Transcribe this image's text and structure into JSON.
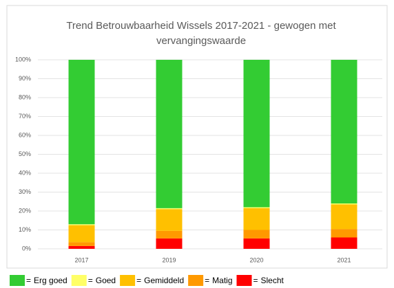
{
  "chart_data": {
    "type": "stacked_bar",
    "title": [
      "Trend Betrouwbaarheid Wissels 2017-2021 - gewogen met",
      "vervangingswaarde"
    ],
    "categories": [
      "2017",
      "2019",
      "2020",
      "2021"
    ],
    "series": [
      {
        "name": "Erg goed",
        "color": "#33cc33",
        "values": [
          87,
          78.5,
          78,
          76
        ]
      },
      {
        "name": "Goed",
        "color": "#ffff66",
        "values": [
          0.5,
          0.5,
          0.5,
          0.5
        ]
      },
      {
        "name": "Gemiddeld",
        "color": "#ffc000",
        "values": [
          9,
          11.5,
          11.5,
          13
        ]
      },
      {
        "name": "Matig",
        "color": "#ff9900",
        "values": [
          2,
          4,
          4.5,
          4.5
        ]
      },
      {
        "name": "Slecht",
        "color": "#ff0000",
        "values": [
          1.5,
          5.5,
          5.5,
          6
        ]
      }
    ],
    "legend_prefix": "=",
    "ylim": [
      0,
      100
    ],
    "yticks": [
      {
        "value": 0,
        "label": "0%"
      },
      {
        "value": 10,
        "label": "10%"
      },
      {
        "value": 20,
        "label": "20%"
      },
      {
        "value": 30,
        "label": "30%"
      },
      {
        "value": 40,
        "label": "40%"
      },
      {
        "value": 50,
        "label": "50%"
      },
      {
        "value": 60,
        "label": "60%"
      },
      {
        "value": 70,
        "label": "70%"
      },
      {
        "value": 80,
        "label": "80%"
      },
      {
        "value": 90,
        "label": "90%"
      },
      {
        "value": 100,
        "label": "100%"
      }
    ],
    "grid": true
  }
}
